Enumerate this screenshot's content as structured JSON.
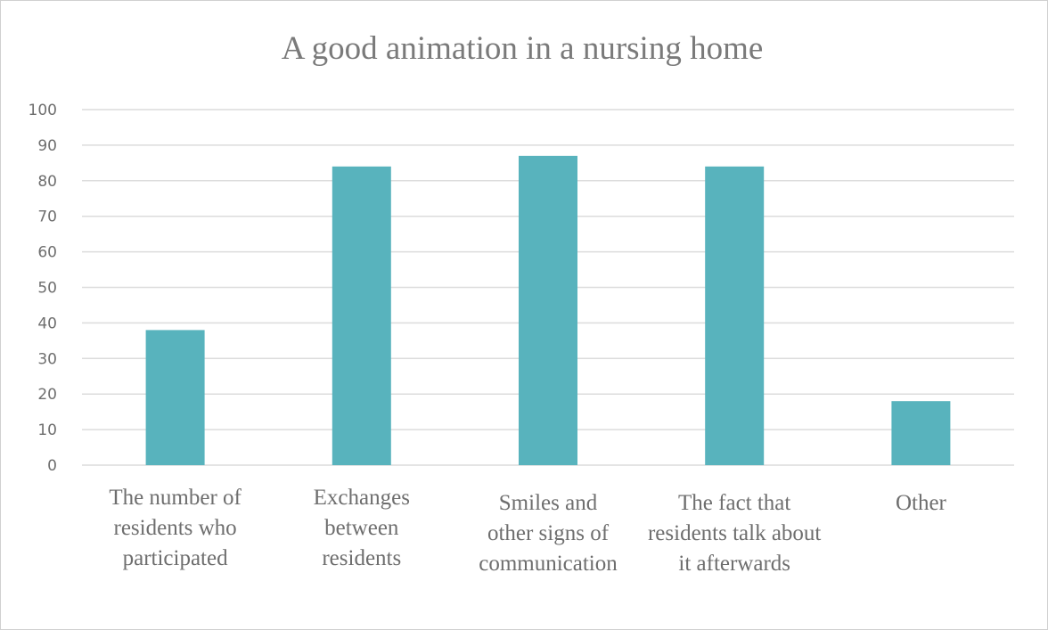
{
  "chart_data": {
    "type": "bar",
    "title": "A good animation in a nursing home",
    "xlabel": "",
    "ylabel": "",
    "ylim": [
      0,
      100
    ],
    "yticks": [
      0,
      10,
      20,
      30,
      40,
      50,
      60,
      70,
      80,
      90,
      100
    ],
    "grid": true,
    "legend": "none",
    "bar_color": "#58b3bd",
    "categories": [
      [
        "The number of",
        "residents who",
        "participated"
      ],
      [
        "Exchanges",
        "between",
        "residents"
      ],
      [
        "Smiles and",
        "other signs of",
        "communication"
      ],
      [
        "The fact that",
        "residents talk about",
        "it afterwards"
      ],
      [
        "Other"
      ]
    ],
    "values": [
      38,
      84,
      87,
      84,
      18
    ]
  }
}
